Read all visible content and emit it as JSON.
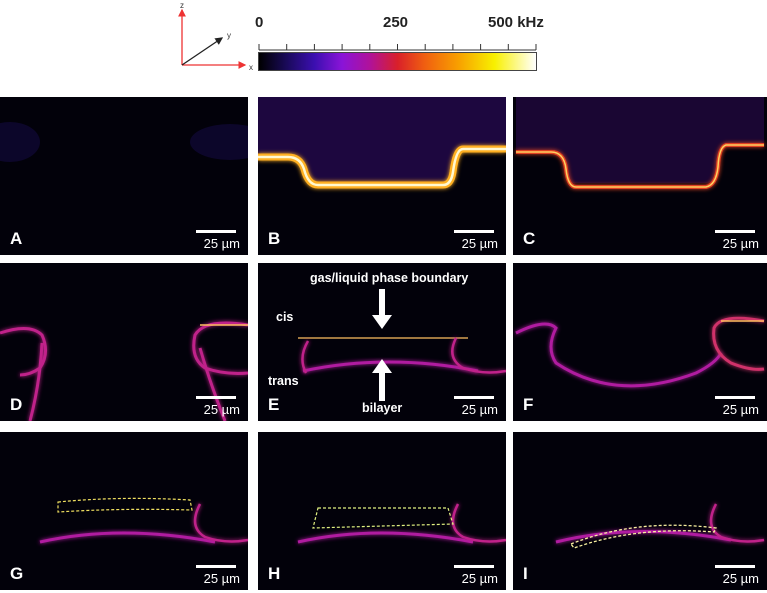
{
  "axes_triad": {
    "z": "z",
    "y": "y",
    "x": "x"
  },
  "colorbar": {
    "min_label": "0",
    "mid_label": "250",
    "max_label": "500 kHz",
    "tick_count": 11,
    "colors": [
      "#000000",
      "#3b0fb0",
      "#8a14d8",
      "#d9202a",
      "#f8a000",
      "#f8f000",
      "#ffffff"
    ]
  },
  "panels": [
    {
      "letter": "A",
      "scale": "25 µm"
    },
    {
      "letter": "B",
      "scale": "25 µm"
    },
    {
      "letter": "C",
      "scale": "25 µm"
    },
    {
      "letter": "D",
      "scale": "25 µm"
    },
    {
      "letter": "E",
      "scale": "25 µm"
    },
    {
      "letter": "F",
      "scale": "25 µm"
    },
    {
      "letter": "G",
      "scale": "25 µm"
    },
    {
      "letter": "H",
      "scale": "25 µm"
    },
    {
      "letter": "I",
      "scale": "25 µm"
    }
  ],
  "annotations": {
    "boundary": "gas/liquid phase boundary",
    "bilayer": "bilayer",
    "cis": "cis",
    "trans": "trans"
  }
}
